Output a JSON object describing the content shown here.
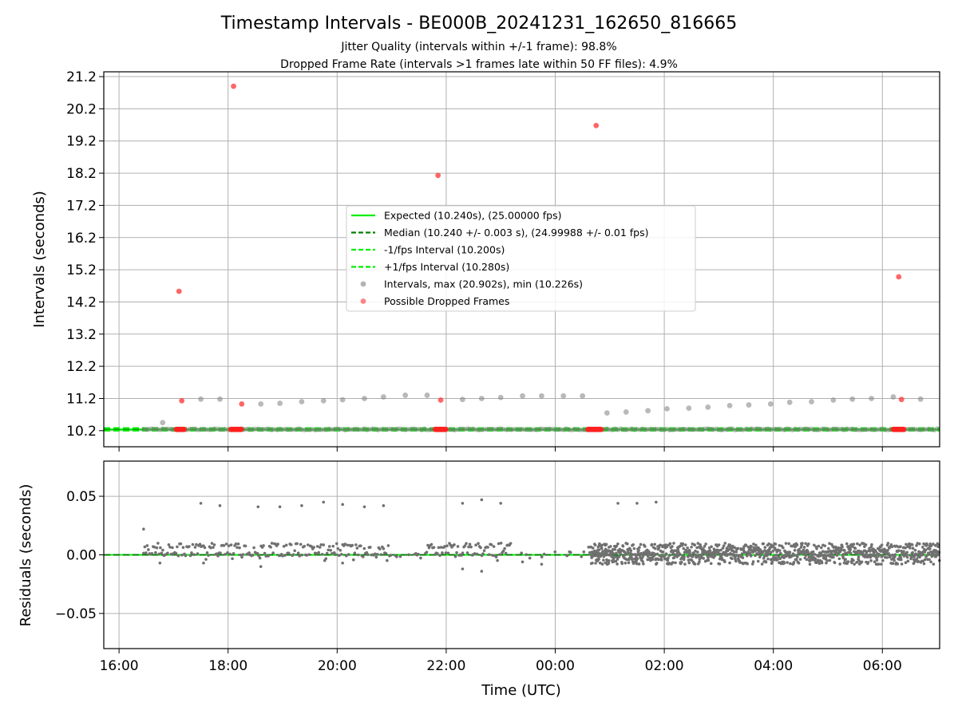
{
  "chart_data": [
    {
      "type": "scatter",
      "title": "Timestamp Intervals - BE000B_20241231_162650_816665",
      "subtitles": [
        "Jitter Quality (intervals within +/-1 frame): 98.8%",
        "Dropped Frame Rate (intervals >1 frames late within 50 FF files): 4.9%"
      ],
      "ylabel": "Intervals (seconds)",
      "ylim": [
        9.7,
        21.35
      ],
      "xlim_hours": [
        15.72,
        31.05
      ],
      "yticks": [
        "10.2",
        "11.2",
        "12.2",
        "13.2",
        "14.2",
        "15.2",
        "16.2",
        "17.2",
        "18.2",
        "19.2",
        "20.2",
        "21.2"
      ],
      "reference_lines": [
        {
          "name": "Expected (10.240s), (25.00000 fps)",
          "value": 10.24,
          "style": "solid",
          "color": "#00ee00"
        },
        {
          "name": "Median (10.240 +/- 0.003 s), (24.99988 +/- 0.01 fps)",
          "value": 10.24,
          "style": "dashed",
          "color": "#008000"
        },
        {
          "name": "-1/fps Interval (10.200s)",
          "value": 10.2,
          "style": "dashed",
          "color": "#00ee00"
        },
        {
          "name": "+1/fps Interval (10.280s)",
          "value": 10.28,
          "style": "dashed",
          "color": "#00ee00"
        }
      ],
      "series": [
        {
          "name": "Intervals, max (20.902s), min (10.226s)",
          "color": "#808080",
          "points": [
            [
              16.8,
              10.45
            ],
            [
              17.5,
              11.18
            ],
            [
              17.85,
              11.18
            ],
            [
              18.6,
              11.03
            ],
            [
              18.95,
              11.05
            ],
            [
              19.35,
              11.1
            ],
            [
              19.75,
              11.13
            ],
            [
              20.1,
              11.16
            ],
            [
              20.5,
              11.2
            ],
            [
              20.85,
              11.25
            ],
            [
              21.25,
              11.3
            ],
            [
              21.65,
              11.3
            ],
            [
              22.3,
              11.17
            ],
            [
              22.65,
              11.2
            ],
            [
              23.0,
              11.23
            ],
            [
              23.4,
              11.28
            ],
            [
              23.75,
              11.28
            ],
            [
              24.15,
              11.28
            ],
            [
              24.5,
              11.28
            ],
            [
              24.95,
              10.75
            ],
            [
              25.3,
              10.78
            ],
            [
              25.7,
              10.82
            ],
            [
              26.05,
              10.88
            ],
            [
              26.45,
              10.9
            ],
            [
              26.8,
              10.93
            ],
            [
              27.2,
              10.98
            ],
            [
              27.55,
              11.0
            ],
            [
              27.95,
              11.03
            ],
            [
              28.3,
              11.08
            ],
            [
              28.7,
              11.1
            ],
            [
              29.1,
              11.15
            ],
            [
              29.45,
              11.18
            ],
            [
              29.8,
              11.2
            ],
            [
              30.2,
              11.25
            ],
            [
              30.7,
              11.18
            ]
          ]
        },
        {
          "name": "Possible Dropped Frames",
          "color": "#ff3333",
          "points": [
            [
              17.1,
              14.53
            ],
            [
              17.15,
              11.13
            ],
            [
              18.1,
              20.9
            ],
            [
              18.25,
              11.03
            ],
            [
              21.85,
              18.13
            ],
            [
              21.9,
              11.15
            ],
            [
              24.75,
              19.68
            ],
            [
              30.3,
              14.98
            ],
            [
              30.35,
              11.17
            ]
          ],
          "cluster_hours": [
            17.05,
            17.2,
            18.05,
            18.25,
            21.8,
            22.0,
            24.6,
            24.85,
            30.2,
            30.4
          ]
        }
      ]
    },
    {
      "type": "scatter",
      "ylabel": "Residuals (seconds)",
      "xlabel": "Time (UTC)",
      "ylim": [
        -0.08,
        0.08
      ],
      "yticks": [
        "0.05",
        "0.00",
        "−0.05"
      ],
      "xticks": [
        "16:00",
        "18:00",
        "20:00",
        "22:00",
        "00:00",
        "02:00",
        "04:00",
        "06:00"
      ],
      "xtick_hours": [
        16,
        18,
        20,
        22,
        24,
        26,
        28,
        30
      ],
      "series": [
        {
          "name": "residuals",
          "color": "#808080",
          "outliers": [
            [
              16.45,
              0.022
            ],
            [
              17.5,
              0.044
            ],
            [
              17.85,
              0.042
            ],
            [
              18.55,
              0.041
            ],
            [
              18.95,
              0.041
            ],
            [
              19.35,
              0.042
            ],
            [
              19.75,
              0.045
            ],
            [
              20.1,
              0.043
            ],
            [
              20.5,
              0.041
            ],
            [
              20.85,
              0.042
            ],
            [
              22.3,
              0.044
            ],
            [
              22.65,
              0.047
            ],
            [
              23.0,
              0.044
            ],
            [
              25.15,
              0.044
            ],
            [
              25.5,
              0.044
            ],
            [
              25.85,
              0.045
            ],
            [
              22.3,
              -0.012
            ],
            [
              22.65,
              -0.014
            ],
            [
              18.6,
              -0.01
            ],
            [
              23.4,
              -0.006
            ],
            [
              23.75,
              -0.008
            ],
            [
              20.1,
              -0.007
            ],
            [
              17.55,
              -0.007
            ],
            [
              16.75,
              -0.007
            ]
          ]
        }
      ]
    }
  ]
}
